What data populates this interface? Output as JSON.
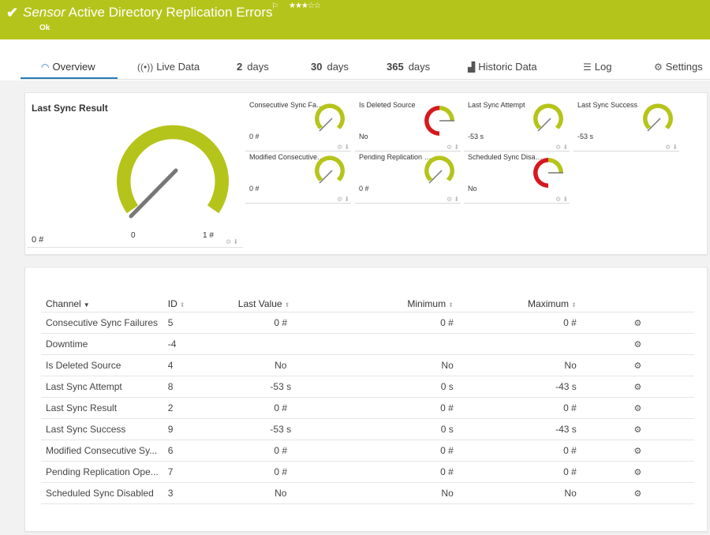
{
  "header": {
    "title_prefix": "Sensor",
    "title": "Active Directory Replication Errors",
    "flag": "⚐",
    "stars": "★★★☆☆",
    "status": "Ok"
  },
  "tabs": [
    {
      "label": "Overview",
      "icon": "gauge-icon"
    },
    {
      "label": "Live Data",
      "icon": "live-signal-icon"
    },
    {
      "num": "2",
      "label": "days"
    },
    {
      "num": "30",
      "label": "days"
    },
    {
      "num": "365",
      "label": "days"
    },
    {
      "label": "Historic Data",
      "icon": "area-chart-icon"
    },
    {
      "label": "Log",
      "icon": "list-icon"
    },
    {
      "label": "Settings",
      "icon": "gear-icon"
    }
  ],
  "main_gauge": {
    "title": "Last Sync Result",
    "value_label": "0 #",
    "min_label": "0",
    "max_label": "1 #",
    "value": 0,
    "min": 0,
    "max": 1
  },
  "gauges": [
    {
      "title": "Consecutive Sync Failu...",
      "value": "0 #",
      "color": "#b5c41a",
      "type": "normal"
    },
    {
      "title": "Is Deleted Source",
      "value": "No",
      "color": "#d7191f",
      "type": "boolean"
    },
    {
      "title": "Last Sync Attempt",
      "value": "-53 s",
      "color": "#b5c41a",
      "type": "normal"
    },
    {
      "title": "Last Sync Success",
      "value": "-53 s",
      "color": "#b5c41a",
      "type": "normal"
    },
    {
      "title": "Modified Consecutive ...",
      "value": "0 #",
      "color": "#b5c41a",
      "type": "normal"
    },
    {
      "title": "Pending Replication O...",
      "value": "0 #",
      "color": "#b5c41a",
      "type": "normal"
    },
    {
      "title": "Scheduled Sync Disabl...",
      "value": "No",
      "color": "#d7191f",
      "type": "boolean"
    }
  ],
  "table": {
    "headers": {
      "channel": "Channel",
      "id": "ID",
      "last_value": "Last Value",
      "minimum": "Minimum",
      "maximum": "Maximum"
    },
    "rows": [
      {
        "channel": "Consecutive Sync Failures",
        "id": "5",
        "last": "0 #",
        "min": "0 #",
        "max": "0 #"
      },
      {
        "channel": "Downtime",
        "id": "-4",
        "last": "",
        "min": "",
        "max": ""
      },
      {
        "channel": "Is Deleted Source",
        "id": "4",
        "last": "No",
        "min": "No",
        "max": "No"
      },
      {
        "channel": "Last Sync Attempt",
        "id": "8",
        "last": "-53 s",
        "min": "0 s",
        "max": "-43 s"
      },
      {
        "channel": "Last Sync Result",
        "id": "2",
        "last": "0 #",
        "min": "0 #",
        "max": "0 #"
      },
      {
        "channel": "Last Sync Success",
        "id": "9",
        "last": "-53 s",
        "min": "0 s",
        "max": "-43 s"
      },
      {
        "channel": "Modified Consecutive Sy...",
        "id": "6",
        "last": "0 #",
        "min": "0 #",
        "max": "0 #"
      },
      {
        "channel": "Pending Replication Ope...",
        "id": "7",
        "last": "0 #",
        "min": "0 #",
        "max": "0 #"
      },
      {
        "channel": "Scheduled Sync Disabled",
        "id": "3",
        "last": "No",
        "min": "No",
        "max": "No"
      }
    ]
  },
  "colors": {
    "brand": "#b5c41a",
    "error": "#d7191f",
    "accent": "#2a7ab8"
  }
}
